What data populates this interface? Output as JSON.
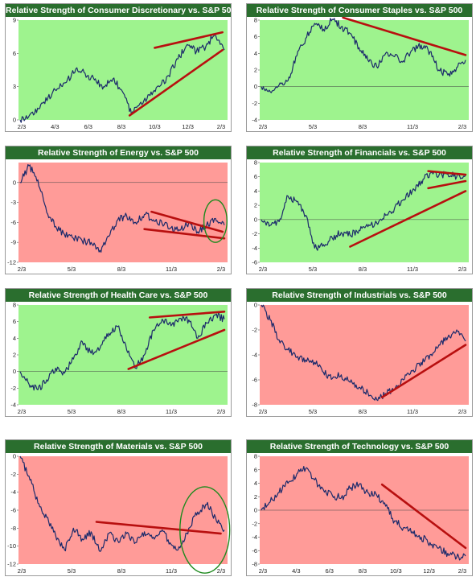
{
  "colors": {
    "title_bg": "#2a6e2e",
    "up_bg": "#9ef38e",
    "down_bg": "#ff9b98",
    "line": "#1b2a6b",
    "trend": "#b80f0f",
    "circle": "#1e8a1e"
  },
  "chart_data": [
    {
      "type": "line",
      "title": "Relative Strength of Consumer Discretionary vs. S&P 500",
      "background": "green",
      "ylim": [
        0,
        9
      ],
      "yticks": [
        "0",
        "3",
        "6",
        "9"
      ],
      "xticks": [
        "2/3",
        "4/3",
        "6/3",
        "8/3",
        "10/3",
        "12/3",
        "2/3"
      ],
      "series": [
        {
          "values": [
            0,
            0.4,
            1,
            2,
            2.8,
            3.4,
            4.6,
            4.2,
            3.6,
            3,
            3.7,
            2.6,
            0.5,
            1.6,
            2.2,
            3,
            4,
            5.5,
            6.8,
            6.2,
            6.6,
            7.8,
            6.3
          ]
        }
      ],
      "trendlines": [
        [
          11.8,
          0.4,
          21.8,
          6.3
        ],
        [
          14.5,
          6.5,
          21.8,
          7.9
        ]
      ],
      "circle": null
    },
    {
      "type": "line",
      "title": "Relative Strength of Consumer Staples vs. S&P 500",
      "background": "green",
      "ylim": [
        -4,
        8
      ],
      "yticks": [
        "-4",
        "-2",
        "0",
        "2",
        "4",
        "6",
        "8"
      ],
      "xticks": [
        "2/3",
        "5/3",
        "8/3",
        "11/3",
        "2/3"
      ],
      "series": [
        {
          "values": [
            0,
            -0.6,
            0.2,
            0.7,
            3.7,
            5.8,
            7.6,
            6.9,
            8.1,
            7.2,
            6.4,
            4.7,
            3.2,
            2.4,
            4.0,
            3.6,
            3.1,
            4.4,
            5.0,
            4.2,
            2.0,
            1.4,
            2.3,
            3.2
          ]
        }
      ],
      "trendlines": [
        [
          9.2,
          8.3,
          23,
          3.8
        ]
      ],
      "circle": null
    },
    {
      "type": "line",
      "title": "Relative Strength of Energy vs. S&P 500",
      "background": "red",
      "ylim": [
        -12,
        3
      ],
      "yticks": [
        "-12",
        "-9",
        "-6",
        "-3",
        "0"
      ],
      "xticks": [
        "2/3",
        "5/3",
        "8/3",
        "11/3",
        "2/3"
      ],
      "series": [
        {
          "values": [
            0,
            2.5,
            0.4,
            -4.5,
            -6.6,
            -7.8,
            -8.4,
            -8.8,
            -9.0,
            -10.2,
            -8.1,
            -5.6,
            -5.0,
            -6.0,
            -4.8,
            -5.6,
            -6.2,
            -6.8,
            -7.2,
            -6.0,
            -7.4,
            -6.4,
            -5.4,
            -6.4
          ]
        }
      ],
      "trendlines": [
        [
          14,
          -7.0,
          23,
          -8.4
        ],
        [
          14.8,
          -4.4,
          22.8,
          -7.4
        ]
      ],
      "circle": [
        22.0,
        -5.8,
        1.3,
        3.2
      ]
    },
    {
      "type": "line",
      "title": "Relative Strength of Financials vs. S&P 500",
      "background": "green",
      "ylim": [
        -6,
        8
      ],
      "yticks": [
        "-6",
        "-4",
        "-2",
        "0",
        "2",
        "4",
        "6",
        "8"
      ],
      "xticks": [
        "2/3",
        "5/3",
        "8/3",
        "11/3",
        "2/3"
      ],
      "series": [
        {
          "values": [
            0,
            -0.8,
            -0.3,
            3.3,
            2.5,
            0.6,
            -4.0,
            -3.5,
            -2.6,
            -1.8,
            -2.2,
            -1.5,
            -1.0,
            -0.5,
            0.6,
            1.6,
            2.8,
            4.0,
            5.4,
            6.5,
            6.2,
            6.4,
            6.0,
            6.2
          ]
        }
      ],
      "trendlines": [
        [
          10,
          -3.8,
          23,
          4.0
        ],
        [
          18.8,
          4.4,
          23,
          5.4
        ],
        [
          18.8,
          6.8,
          23,
          6.3
        ]
      ],
      "circle": null
    },
    {
      "type": "line",
      "title": "Relative Strength of Health Care vs. S&P 500",
      "background": "green",
      "ylim": [
        -4,
        8
      ],
      "yticks": [
        "-4",
        "-2",
        "0",
        "2",
        "4",
        "6",
        "8"
      ],
      "xticks": [
        "2/3",
        "5/3",
        "8/3",
        "11/3",
        "2/3"
      ],
      "series": [
        {
          "values": [
            0,
            -1.5,
            -2.2,
            -1.0,
            0.4,
            -0.2,
            1.5,
            3.6,
            2.2,
            2.8,
            4.6,
            5.4,
            2.6,
            0.4,
            2.0,
            5.0,
            6.3,
            5.5,
            6.4,
            6.2,
            4.0,
            5.8,
            6.8,
            6.3
          ]
        }
      ],
      "trendlines": [
        [
          12.2,
          0.3,
          23,
          5.0
        ],
        [
          14.6,
          6.5,
          23,
          7.2
        ]
      ],
      "circle": null
    },
    {
      "type": "line",
      "title": "Relative Strength of Industrials vs. S&P 500",
      "background": "red",
      "ylim": [
        -8,
        0
      ],
      "yticks": [
        "-8",
        "-6",
        "-4",
        "-2",
        "0"
      ],
      "xticks": [
        "2/3",
        "5/3",
        "8/3",
        "11/3",
        "2/3"
      ],
      "series": [
        {
          "values": [
            0,
            -1.2,
            -2.8,
            -3.6,
            -4.2,
            -4.4,
            -4.6,
            -5.4,
            -5.9,
            -5.6,
            -6.2,
            -6.6,
            -7.0,
            -7.6,
            -7.1,
            -6.8,
            -6.0,
            -5.3,
            -4.6,
            -4.0,
            -3.2,
            -2.6,
            -2.0,
            -2.9
          ]
        }
      ],
      "trendlines": [
        [
          13.6,
          -7.4,
          23,
          -3.2
        ]
      ],
      "circle": null
    },
    {
      "type": "line",
      "title": "Relative Strength of Materials vs. S&P 500",
      "background": "red",
      "ylim": [
        -12,
        0
      ],
      "yticks": [
        "-12",
        "-10",
        "-8",
        "-6",
        "-4",
        "-2",
        "0"
      ],
      "xticks": [
        "2/3",
        "5/3",
        "8/3",
        "11/3",
        "2/3"
      ],
      "series": [
        {
          "values": [
            0,
            -2.2,
            -5.2,
            -6.8,
            -8.8,
            -10.4,
            -8.0,
            -9.2,
            -8.4,
            -10.6,
            -8.6,
            -9.4,
            -8.6,
            -9.6,
            -8.4,
            -9.0,
            -8.2,
            -9.8,
            -10.2,
            -8.0,
            -6.2,
            -5.4,
            -6.8,
            -8.2
          ]
        }
      ],
      "trendlines": [
        [
          8.6,
          -7.3,
          22.6,
          -8.6
        ]
      ],
      "circle": [
        20.8,
        -8.2,
        2.8,
        4.8
      ]
    },
    {
      "type": "line",
      "title": "Relative Strength of Technology vs. S&P 500",
      "background": "red",
      "ylim": [
        -8,
        8
      ],
      "yticks": [
        "-8",
        "-6",
        "-4",
        "-2",
        "0",
        "2",
        "4",
        "6",
        "8"
      ],
      "xticks": [
        "2/3",
        "4/3",
        "6/3",
        "8/3",
        "10/3",
        "12/3",
        "2/3"
      ],
      "series": [
        {
          "values": [
            0,
            1.2,
            2.6,
            4.0,
            5.4,
            6.2,
            4.5,
            3.0,
            2.2,
            1.8,
            3.2,
            3.8,
            2.6,
            2.2,
            0.6,
            -1.6,
            -2.6,
            -3.2,
            -4.0,
            -4.8,
            -5.6,
            -6.4,
            -7.0,
            -6.8
          ]
        }
      ],
      "trendlines": [
        [
          13.6,
          3.8,
          23,
          -5.6
        ]
      ],
      "circle": null
    }
  ]
}
